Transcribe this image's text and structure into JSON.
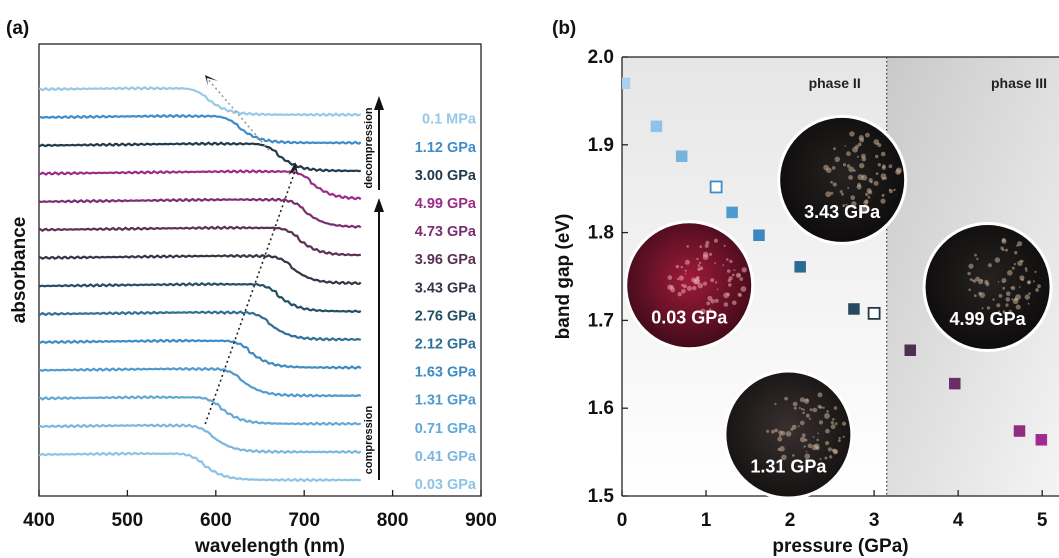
{
  "panels": {
    "a": "(a)",
    "b": "(b)"
  },
  "chart_data": [
    {
      "type": "line",
      "panel": "(a)",
      "xlabel": "wavelength (nm)",
      "ylabel": "absorbance",
      "xlim": [
        400,
        900
      ],
      "xticks": [
        "400",
        "500",
        "600",
        "700",
        "800",
        "900"
      ],
      "offset_spectra": true,
      "annotations": {
        "compression": "compression",
        "decompression": "decompression"
      },
      "series": [
        {
          "name": "0.03 GPa",
          "edge": 585,
          "color": "#8dc3e6"
        },
        {
          "name": "0.41 GPa",
          "edge": 595,
          "color": "#7ab6df"
        },
        {
          "name": "0.71 GPa",
          "edge": 605,
          "color": "#63a9d8"
        },
        {
          "name": "1.31 GPa",
          "edge": 628,
          "color": "#4f9bcf"
        },
        {
          "name": "1.63 GPa",
          "edge": 638,
          "color": "#3d8bc4"
        },
        {
          "name": "2.12 GPa",
          "edge": 660,
          "color": "#2f6f98"
        },
        {
          "name": "2.76 GPa",
          "edge": 670,
          "color": "#264f66"
        },
        {
          "name": "3.43 GPa",
          "edge": 685,
          "color": "#3a3348"
        },
        {
          "name": "3.96 GPa",
          "edge": 693,
          "color": "#5a3055"
        },
        {
          "name": "4.73 GPa",
          "edge": 700,
          "color": "#7b2d72"
        },
        {
          "name": "4.99 GPa",
          "edge": 708,
          "color": "#9a2c8a"
        },
        {
          "name": "3.00 GPa",
          "edge": 670,
          "color": "#213a4c"
        },
        {
          "name": "1.12 GPa",
          "edge": 625,
          "color": "#3f8cc8"
        },
        {
          "name": "0.1 MPa",
          "edge": 590,
          "color": "#98c8e8"
        }
      ]
    },
    {
      "type": "scatter",
      "panel": "(b)",
      "xlabel": "pressure (GPa)",
      "ylabel": "band gap (eV)",
      "xlim": [
        0,
        5.2
      ],
      "ylim": [
        1.5,
        2.0
      ],
      "xticks": [
        "0",
        "1",
        "2",
        "3",
        "4",
        "5"
      ],
      "yticks": [
        "1.5",
        "1.6",
        "1.7",
        "1.8",
        "1.9",
        "2.0"
      ],
      "phase_boundary": 3.15,
      "regions": {
        "left": "phase II",
        "right": "phase III"
      },
      "series": [
        {
          "name": "compression",
          "points": [
            {
              "x": 0.03,
              "y": 1.97,
              "color": "#a6d2ee"
            },
            {
              "x": 0.41,
              "y": 1.921,
              "color": "#8ec2e6"
            },
            {
              "x": 0.71,
              "y": 1.887,
              "color": "#78b3dd"
            },
            {
              "x": 1.31,
              "y": 1.823,
              "color": "#4d9ad0"
            },
            {
              "x": 1.63,
              "y": 1.797,
              "color": "#3b86c0"
            },
            {
              "x": 2.12,
              "y": 1.761,
              "color": "#2d6a93"
            },
            {
              "x": 2.76,
              "y": 1.713,
              "color": "#264a60"
            },
            {
              "x": 3.43,
              "y": 1.666,
              "color": "#4d3050"
            },
            {
              "x": 3.96,
              "y": 1.628,
              "color": "#6a2d66"
            },
            {
              "x": 4.73,
              "y": 1.574,
              "color": "#8f2d80"
            },
            {
              "x": 4.99,
              "y": 1.564,
              "color": "#a02a90"
            }
          ]
        },
        {
          "name": "decompression",
          "points": [
            {
              "x": 1.12,
              "y": 1.852,
              "color": "#3f8cc8"
            },
            {
              "x": 3.0,
              "y": 1.708,
              "color": "#213a4c"
            }
          ]
        }
      ],
      "insets": [
        {
          "label": "0.03 GPa",
          "x": 0.8,
          "y": 1.74,
          "tone": "red"
        },
        {
          "label": "1.31 GPa",
          "x": 1.98,
          "y": 1.57,
          "tone": "dark"
        },
        {
          "label": "3.43 GPa",
          "x": 2.62,
          "y": 1.86,
          "tone": "black"
        },
        {
          "label": "4.99 GPa",
          "x": 4.35,
          "y": 1.738,
          "tone": "black"
        }
      ]
    }
  ]
}
